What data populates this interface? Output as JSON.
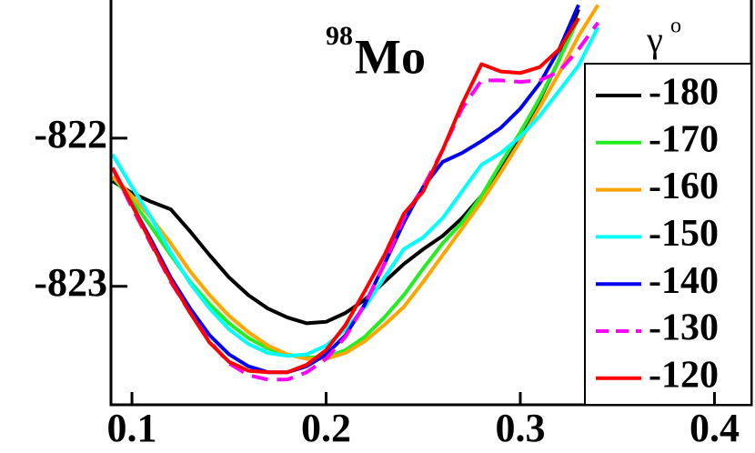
{
  "chart_data": {
    "type": "line",
    "title_sup": "98",
    "title": "Mo",
    "legend_title": "γ",
    "legend_title_sup": "o",
    "legend": "right",
    "xlim": [
      0.0892,
      0.419
    ],
    "ylim": [
      -823.8,
      -821.067
    ],
    "xticks": [
      0.1,
      0.2,
      0.3,
      0.4
    ],
    "yticks": [
      -822,
      -823
    ],
    "x": [
      0.09,
      0.1,
      0.11,
      0.12,
      0.13,
      0.14,
      0.15,
      0.16,
      0.17,
      0.18,
      0.19,
      0.2,
      0.21,
      0.22,
      0.23,
      0.24,
      0.25,
      0.26,
      0.27,
      0.28,
      0.29,
      0.3,
      0.31,
      0.32,
      0.33,
      0.34,
      0.35
    ],
    "series": [
      {
        "name": "-180",
        "color": "#000000",
        "dash": false,
        "values": [
          -822.29,
          -822.37,
          -822.43,
          -822.48,
          -822.63,
          -822.79,
          -822.94,
          -823.06,
          -823.15,
          -823.21,
          -823.25,
          -823.24,
          -823.18,
          -823.09,
          -822.97,
          -822.85,
          -822.75,
          -822.66,
          -822.54,
          -822.39,
          -822.2,
          -821.99,
          -821.74,
          -821.47,
          -821.13,
          null,
          null
        ]
      },
      {
        "name": "-170",
        "color": "#22ee22",
        "dash": false,
        "values": [
          -822.26,
          -822.42,
          -822.6,
          -822.79,
          -822.97,
          -823.12,
          -823.25,
          -823.35,
          -823.42,
          -823.46,
          -823.48,
          -823.48,
          -823.43,
          -823.34,
          -823.21,
          -823.06,
          -822.88,
          -822.71,
          -822.57,
          -822.39,
          -822.17,
          -821.96,
          -821.73,
          -821.47,
          -821.19,
          null,
          null
        ]
      },
      {
        "name": "-160",
        "color": "#ffa500",
        "dash": false,
        "values": [
          -822.26,
          -822.39,
          -822.54,
          -822.71,
          -822.9,
          -823.06,
          -823.2,
          -823.31,
          -823.4,
          -823.46,
          -823.49,
          -823.49,
          -823.45,
          -823.37,
          -823.26,
          -823.14,
          -822.97,
          -822.79,
          -822.61,
          -822.43,
          -822.23,
          -822.02,
          -821.79,
          -821.56,
          -821.31,
          -821.1,
          null
        ]
      },
      {
        "name": "-150",
        "color": "#00ffff",
        "dash": false,
        "values": [
          -822.11,
          -822.33,
          -822.54,
          -822.77,
          -822.98,
          -823.15,
          -823.29,
          -823.39,
          -823.45,
          -823.47,
          -823.46,
          -823.4,
          -823.29,
          -823.14,
          -822.94,
          -822.75,
          -822.67,
          -822.54,
          -822.36,
          -822.18,
          -822.1,
          -821.99,
          -821.85,
          -821.68,
          -821.51,
          -821.25,
          null
        ]
      },
      {
        "name": "-140",
        "color": "#0000ee",
        "dash": false,
        "values": [
          -822.2,
          -822.45,
          -822.69,
          -822.94,
          -823.15,
          -823.33,
          -823.46,
          -823.54,
          -823.58,
          -823.58,
          -823.54,
          -823.46,
          -823.33,
          -823.12,
          -822.85,
          -822.57,
          -822.33,
          -822.16,
          -822.1,
          -822.02,
          -821.93,
          -821.8,
          -821.63,
          -821.4,
          -821.1,
          null,
          null
        ]
      },
      {
        "name": "-130",
        "color": "#ff00ff",
        "dash": true,
        "values": [
          -822.2,
          -822.47,
          -822.72,
          -822.97,
          -823.18,
          -823.37,
          -823.52,
          -823.6,
          -823.63,
          -823.63,
          -823.58,
          -823.49,
          -823.34,
          -823.12,
          -822.85,
          -822.54,
          -822.33,
          -822.08,
          -821.8,
          -821.61,
          -821.61,
          -821.62,
          -821.61,
          -821.55,
          -821.4,
          -821.22,
          null
        ]
      },
      {
        "name": "-120",
        "color": "#ff0000",
        "dash": false,
        "values": [
          -822.2,
          -822.45,
          -822.71,
          -822.96,
          -823.18,
          -823.38,
          -823.51,
          -823.57,
          -823.58,
          -823.58,
          -823.53,
          -823.43,
          -823.26,
          -823.03,
          -822.79,
          -822.51,
          -822.36,
          -822.08,
          -821.77,
          -821.5,
          -821.55,
          -821.56,
          -821.52,
          -821.4,
          -821.19,
          null,
          null
        ]
      }
    ]
  }
}
